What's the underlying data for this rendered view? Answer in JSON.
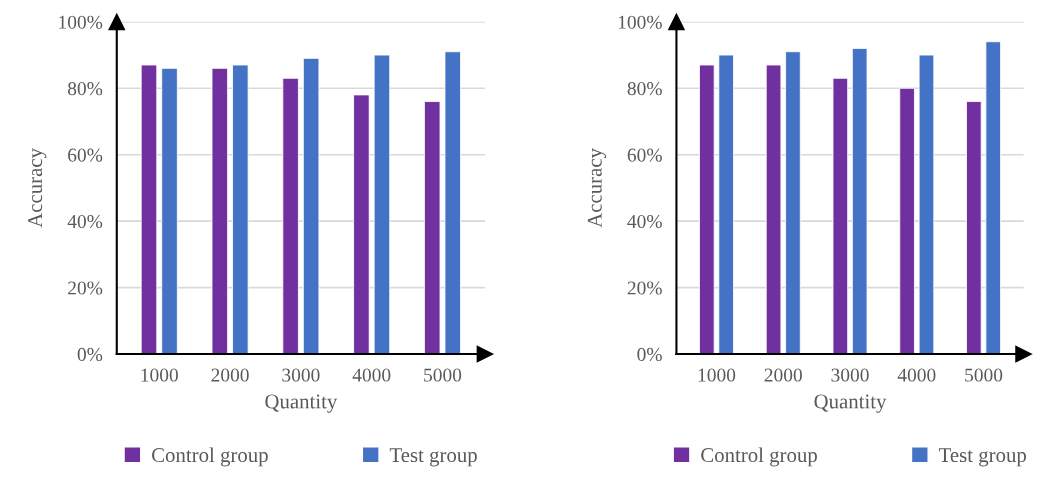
{
  "chart_data": [
    {
      "type": "bar",
      "xlabel": "Quantity",
      "ylabel": "Accuracy",
      "categories": [
        "1000",
        "2000",
        "3000",
        "4000",
        "5000"
      ],
      "series": [
        {
          "name": "Control group",
          "color": "#7030a0",
          "values": [
            87,
            86,
            83,
            78,
            76
          ]
        },
        {
          "name": "Test group",
          "color": "#4472c4",
          "values": [
            86,
            87,
            89,
            90,
            91
          ]
        }
      ],
      "ylim": [
        0,
        100
      ],
      "yticks": [
        {
          "value": 0,
          "label": "0%"
        },
        {
          "value": 20,
          "label": "20%"
        },
        {
          "value": 40,
          "label": "40%"
        },
        {
          "value": 60,
          "label": "60%"
        },
        {
          "value": 80,
          "label": "80%"
        },
        {
          "value": 100,
          "label": "100%"
        }
      ],
      "grid": "y",
      "legend": "bottom"
    },
    {
      "type": "bar",
      "xlabel": "Quantity",
      "ylabel": "Accuracy",
      "categories": [
        "1000",
        "2000",
        "3000",
        "4000",
        "5000"
      ],
      "series": [
        {
          "name": "Control group",
          "color": "#7030a0",
          "values": [
            87,
            87,
            83,
            80,
            76
          ]
        },
        {
          "name": "Test group",
          "color": "#4472c4",
          "values": [
            90,
            91,
            92,
            90,
            94
          ]
        }
      ],
      "ylim": [
        0,
        100
      ],
      "yticks": [
        {
          "value": 0,
          "label": "0%"
        },
        {
          "value": 20,
          "label": "20%"
        },
        {
          "value": 40,
          "label": "40%"
        },
        {
          "value": 60,
          "label": "60%"
        },
        {
          "value": 80,
          "label": "80%"
        },
        {
          "value": 100,
          "label": "100%"
        }
      ],
      "grid": "y",
      "legend": "bottom"
    }
  ]
}
